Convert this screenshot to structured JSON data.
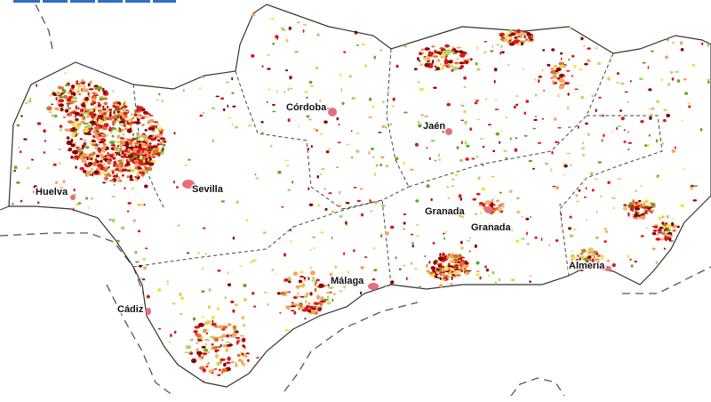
{
  "map": {
    "places": [
      {
        "name": "Córdoba"
      },
      {
        "name": "Jaén"
      },
      {
        "name": "Huelva"
      },
      {
        "name": "Sevilla"
      },
      {
        "name": "Granada"
      },
      {
        "name": "Granada"
      },
      {
        "name": "Málaga"
      },
      {
        "name": "Cádiz"
      },
      {
        "name": "Almería"
      }
    ]
  }
}
